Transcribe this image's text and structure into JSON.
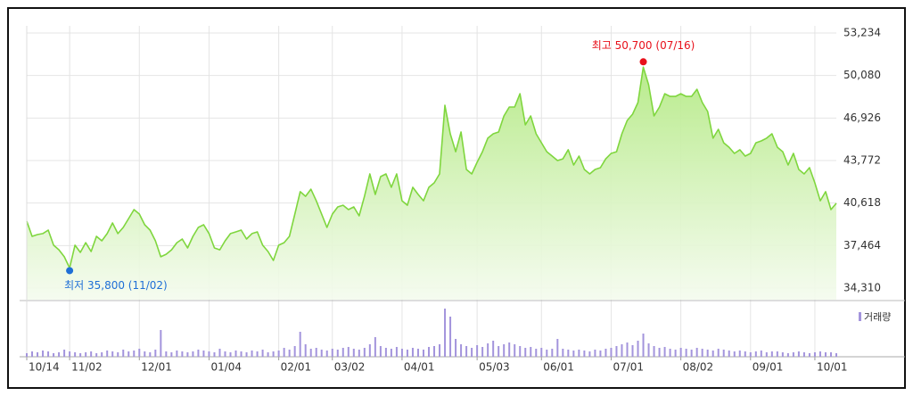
{
  "chart_data": {
    "type": "line",
    "color": "#7fd63e",
    "fill_color": "#b5ea86",
    "grid": true,
    "max_label": "최고 50,700 (07/16)",
    "max_color": "#e8101a",
    "min_label": "최저 35,800 (11/02)",
    "min_color": "#1f6fd6",
    "categories": [
      "10/14",
      null,
      null,
      null,
      null,
      null,
      null,
      null,
      "11/02",
      null,
      null,
      null,
      null,
      null,
      null,
      null,
      null,
      null,
      null,
      null,
      null,
      "12/01",
      null,
      null,
      null,
      null,
      null,
      null,
      null,
      null,
      null,
      null,
      null,
      null,
      "01/04",
      null,
      null,
      null,
      null,
      null,
      null,
      null,
      null,
      null,
      null,
      null,
      null,
      "02/01",
      null,
      null,
      null,
      null,
      null,
      null,
      null,
      null,
      null,
      "03/02",
      null,
      null,
      null,
      null,
      null,
      null,
      null,
      null,
      null,
      null,
      null,
      null,
      "04/01",
      null,
      null,
      null,
      null,
      null,
      null,
      null,
      null,
      null,
      null,
      null,
      null,
      null,
      "05/03",
      null,
      null,
      null,
      null,
      null,
      null,
      null,
      null,
      null,
      null,
      null,
      "06/01",
      null,
      null,
      null,
      null,
      null,
      null,
      null,
      null,
      null,
      null,
      null,
      null,
      "07/01",
      null,
      null,
      null,
      null,
      null,
      null,
      null,
      null,
      null,
      null,
      null,
      null,
      "08/02",
      null,
      null,
      null,
      null,
      null,
      null,
      null,
      null,
      null,
      null,
      null,
      null,
      "09/01",
      null,
      null,
      null,
      null,
      null,
      null,
      null,
      null,
      null,
      null,
      null,
      "10/01",
      null,
      null,
      null,
      null
    ],
    "values": [
      39270,
      38150,
      38280,
      38350,
      38610,
      37490,
      37150,
      36630,
      35800,
      37490,
      36960,
      37680,
      37020,
      38150,
      37820,
      38350,
      39140,
      38350,
      38810,
      39470,
      40130,
      39800,
      39010,
      38610,
      37820,
      36630,
      36820,
      37150,
      37680,
      37950,
      37290,
      38150,
      38810,
      39010,
      38350,
      37290,
      37150,
      37820,
      38350,
      38480,
      38610,
      37950,
      38350,
      38480,
      37490,
      37020,
      36360,
      37490,
      37680,
      38150,
      39800,
      41460,
      41120,
      41650,
      40790,
      39800,
      38810,
      39800,
      40330,
      40460,
      40130,
      40330,
      39670,
      41120,
      42780,
      41260,
      42580,
      42780,
      41790,
      42780,
      40790,
      40460,
      41790,
      41260,
      40790,
      41790,
      42120,
      42780,
      47870,
      45760,
      44430,
      45890,
      43110,
      42780,
      43640,
      44430,
      45430,
      45760,
      45890,
      47080,
      47740,
      47740,
      48730,
      46420,
      47080,
      45760,
      45090,
      44430,
      44100,
      43770,
      43900,
      44570,
      43440,
      44100,
      43110,
      42780,
      43110,
      43240,
      43900,
      44300,
      44430,
      45760,
      46750,
      47210,
      48070,
      50700,
      49390,
      47080,
      47740,
      48730,
      48530,
      48530,
      48730,
      48530,
      48530,
      49060,
      48070,
      47410,
      45430,
      46090,
      45090,
      44760,
      44300,
      44570,
      44100,
      44300,
      45090,
      45230,
      45430,
      45760,
      44760,
      44430,
      43440,
      44300,
      43110,
      42780,
      43240,
      42120,
      40790,
      41460,
      40130,
      40600
    ],
    "ylim": [
      33450,
      53234
    ],
    "yticks": [
      {
        "value": 34310,
        "label": "34,310"
      },
      {
        "value": 37464,
        "label": "37,464"
      },
      {
        "value": 40618,
        "label": "40,618"
      },
      {
        "value": 43772,
        "label": "43,772"
      },
      {
        "value": 46926,
        "label": "46,926"
      },
      {
        "value": 50080,
        "label": "50,080"
      },
      {
        "value": 53234,
        "label": "53,234"
      }
    ],
    "volume": {
      "name": "거래량",
      "color": "#a394dc",
      "values": [
        4,
        6,
        5,
        7,
        6,
        4,
        5,
        8,
        6,
        5,
        4,
        5,
        6,
        4,
        5,
        7,
        6,
        5,
        8,
        6,
        7,
        9,
        6,
        5,
        8,
        30,
        6,
        5,
        7,
        6,
        5,
        6,
        8,
        7,
        6,
        5,
        9,
        6,
        5,
        7,
        6,
        5,
        7,
        6,
        8,
        5,
        6,
        7,
        10,
        8,
        12,
        28,
        14,
        9,
        10,
        8,
        7,
        9,
        8,
        10,
        11,
        9,
        8,
        10,
        14,
        22,
        12,
        10,
        9,
        11,
        9,
        8,
        10,
        9,
        8,
        11,
        12,
        14,
        54,
        45,
        20,
        14,
        12,
        10,
        13,
        11,
        15,
        18,
        12,
        14,
        16,
        14,
        12,
        10,
        11,
        9,
        10,
        8,
        9,
        20,
        9,
        8,
        7,
        8,
        7,
        6,
        8,
        7,
        9,
        10,
        12,
        14,
        16,
        13,
        18,
        26,
        15,
        12,
        10,
        11,
        9,
        8,
        10,
        9,
        8,
        10,
        9,
        8,
        7,
        9,
        8,
        7,
        6,
        7,
        6,
        5,
        6,
        7,
        5,
        6,
        6,
        5,
        4,
        5,
        6,
        5,
        4,
        5,
        6,
        5,
        5,
        4
      ]
    }
  }
}
